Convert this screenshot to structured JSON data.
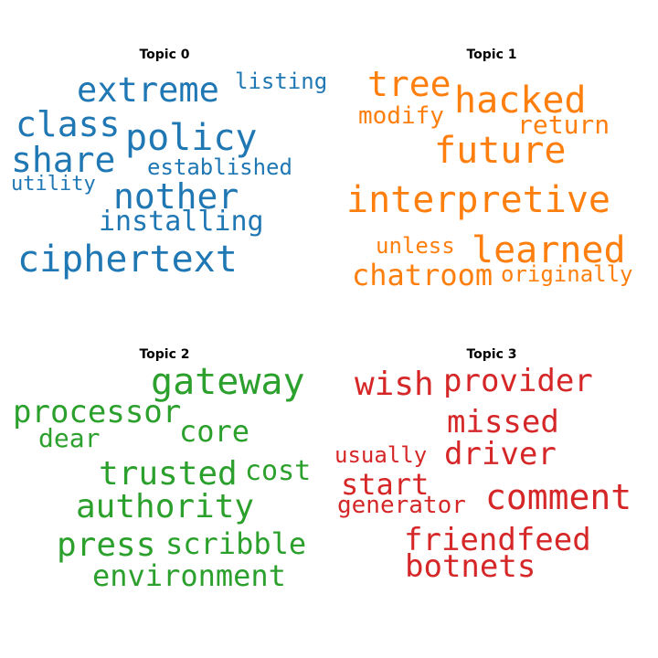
{
  "figure": {
    "panels": [
      {
        "title": "Topic 0",
        "color": "#1f77b4",
        "words": [
          "extreme",
          "listing",
          "class",
          "policy",
          "share",
          "established",
          "utility",
          "nother",
          "installing",
          "ciphertext"
        ]
      },
      {
        "title": "Topic 1",
        "color": "#ff7f0e",
        "words": [
          "tree",
          "hacked",
          "modify",
          "return",
          "future",
          "interpretive",
          "unless",
          "learned",
          "chatroom",
          "originally"
        ]
      },
      {
        "title": "Topic 2",
        "color": "#2ca02c",
        "words": [
          "gateway",
          "processor",
          "core",
          "dear",
          "trusted",
          "cost",
          "authority",
          "press",
          "scribble",
          "environment"
        ]
      },
      {
        "title": "Topic 3",
        "color": "#d62728",
        "words": [
          "wish",
          "provider",
          "missed",
          "usually",
          "driver",
          "start",
          "comment",
          "generator",
          "friendfeed",
          "botnets"
        ]
      }
    ]
  }
}
